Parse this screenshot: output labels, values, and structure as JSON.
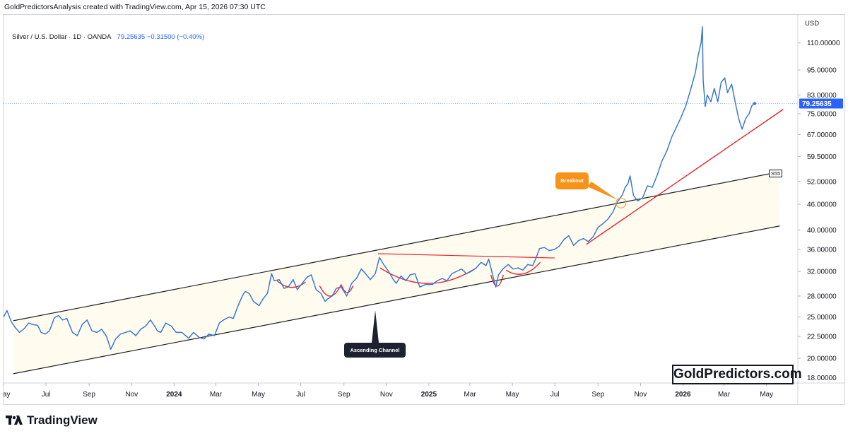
{
  "header": {
    "text": "GoldPredictorsAnalysis created with TradingView.com, Apr 15, 2026 07:30 UTC"
  },
  "legend": {
    "symbol": "Silver / U.S. Dollar",
    "interval": "1D",
    "source": "OANDA",
    "last": "79.25635",
    "change": "−0.31500",
    "change_pct": "(−0.40%)"
  },
  "footer": {
    "brand": "TradingView",
    "logo_icon": "tradingview-logo-icon"
  },
  "watermark": {
    "text": "GoldPredictors.com"
  },
  "annotations": {
    "breakout": "Breakout",
    "ascending_channel": "Ascending Channel",
    "channel_tag": "S55"
  },
  "colors": {
    "price_line": "#3a78cf",
    "trend_red": "#e8222d",
    "channel_line": "#1e1e1e",
    "channel_fill": "#fffcef",
    "breakout_bg": "#f7931a",
    "label_dark": "#1e2230",
    "price_tag": "#2962ff"
  },
  "chart_data": {
    "type": "line",
    "title": "Silver / U.S. Dollar · 1D · OANDA",
    "currency": "USD",
    "y_scale": "log",
    "ylim": [
      17.5,
      128
    ],
    "y_ticks": [
      18,
      20,
      22.5,
      25,
      28,
      32,
      36,
      40,
      46,
      52,
      59.5,
      67,
      75,
      83,
      95,
      110
    ],
    "y_tick_labels": [
      "18.00000",
      "20.00000",
      "22.50000",
      "25.00000",
      "28.00000",
      "32.00000",
      "36.00000",
      "40.00000",
      "46.00000",
      "52.00000",
      "59.50000",
      "67.00000",
      "75.00000",
      "83.00000",
      "95.00000",
      "110.00000"
    ],
    "x_ticks": [
      {
        "label": "May",
        "date": "2023-05-01",
        "bold": false
      },
      {
        "label": "Jul",
        "date": "2023-07-01",
        "bold": false
      },
      {
        "label": "Sep",
        "date": "2023-09-01",
        "bold": false
      },
      {
        "label": "Nov",
        "date": "2023-11-01",
        "bold": false
      },
      {
        "label": "2024",
        "date": "2024-01-01",
        "bold": true
      },
      {
        "label": "Mar",
        "date": "2024-03-01",
        "bold": false
      },
      {
        "label": "May",
        "date": "2024-05-01",
        "bold": false
      },
      {
        "label": "Jul",
        "date": "2024-07-01",
        "bold": false
      },
      {
        "label": "Sep",
        "date": "2024-09-01",
        "bold": false
      },
      {
        "label": "Nov",
        "date": "2024-11-01",
        "bold": false
      },
      {
        "label": "2025",
        "date": "2025-01-01",
        "bold": true
      },
      {
        "label": "Mar",
        "date": "2025-03-01",
        "bold": false
      },
      {
        "label": "May",
        "date": "2025-05-01",
        "bold": false
      },
      {
        "label": "Jul",
        "date": "2025-07-01",
        "bold": false
      },
      {
        "label": "Sep",
        "date": "2025-09-01",
        "bold": false
      },
      {
        "label": "Nov",
        "date": "2025-11-01",
        "bold": false
      },
      {
        "label": "2026",
        "date": "2026-01-01",
        "bold": true
      },
      {
        "label": "Mar",
        "date": "2026-03-01",
        "bold": false
      },
      {
        "label": "May",
        "date": "2026-05-01",
        "bold": false
      }
    ],
    "xlim": [
      "2023-05-01",
      "2026-06-15"
    ],
    "last_price": 79.25635,
    "series": [
      {
        "name": "Silver / U.S. Dollar",
        "points": [
          [
            "2023-05-01",
            25.0
          ],
          [
            "2023-05-06",
            25.9
          ],
          [
            "2023-05-12",
            24.4
          ],
          [
            "2023-05-18",
            23.6
          ],
          [
            "2023-05-24",
            23.0
          ],
          [
            "2023-05-31",
            23.5
          ],
          [
            "2023-06-06",
            24.2
          ],
          [
            "2023-06-12",
            24.0
          ],
          [
            "2023-06-19",
            23.9
          ],
          [
            "2023-06-24",
            23.0
          ],
          [
            "2023-06-30",
            22.8
          ],
          [
            "2023-07-06",
            23.2
          ],
          [
            "2023-07-13",
            24.9
          ],
          [
            "2023-07-19",
            25.2
          ],
          [
            "2023-07-25",
            24.6
          ],
          [
            "2023-07-31",
            24.8
          ],
          [
            "2023-08-08",
            23.0
          ],
          [
            "2023-08-15",
            22.6
          ],
          [
            "2023-08-22",
            24.0
          ],
          [
            "2023-08-29",
            24.6
          ],
          [
            "2023-09-05",
            23.2
          ],
          [
            "2023-09-12",
            23.0
          ],
          [
            "2023-09-19",
            23.4
          ],
          [
            "2023-09-26",
            22.5
          ],
          [
            "2023-10-02",
            21.0
          ],
          [
            "2023-10-09",
            22.2
          ],
          [
            "2023-10-16",
            22.8
          ],
          [
            "2023-10-23",
            23.0
          ],
          [
            "2023-10-30",
            23.2
          ],
          [
            "2023-11-07",
            22.6
          ],
          [
            "2023-11-14",
            23.4
          ],
          [
            "2023-11-21",
            23.8
          ],
          [
            "2023-11-28",
            24.6
          ],
          [
            "2023-12-04",
            23.8
          ],
          [
            "2023-12-08",
            23.2
          ],
          [
            "2023-12-13",
            23.0
          ],
          [
            "2023-12-20",
            24.2
          ],
          [
            "2023-12-28",
            23.8
          ],
          [
            "2024-01-04",
            23.0
          ],
          [
            "2024-01-12",
            23.0
          ],
          [
            "2024-01-22",
            22.3
          ],
          [
            "2024-01-29",
            23.0
          ],
          [
            "2024-02-06",
            22.4
          ],
          [
            "2024-02-13",
            22.2
          ],
          [
            "2024-02-20",
            22.8
          ],
          [
            "2024-02-28",
            22.6
          ],
          [
            "2024-03-06",
            24.2
          ],
          [
            "2024-03-12",
            24.6
          ],
          [
            "2024-03-20",
            25.0
          ],
          [
            "2024-03-26",
            24.8
          ],
          [
            "2024-04-02",
            26.6
          ],
          [
            "2024-04-08",
            28.0
          ],
          [
            "2024-04-12",
            28.7
          ],
          [
            "2024-04-18",
            28.4
          ],
          [
            "2024-04-24",
            27.2
          ],
          [
            "2024-05-02",
            26.6
          ],
          [
            "2024-05-08",
            27.6
          ],
          [
            "2024-05-14",
            28.4
          ],
          [
            "2024-05-20",
            31.6
          ],
          [
            "2024-05-24",
            30.4
          ],
          [
            "2024-05-31",
            30.6
          ],
          [
            "2024-06-07",
            29.2
          ],
          [
            "2024-06-13",
            29.4
          ],
          [
            "2024-06-20",
            30.6
          ],
          [
            "2024-06-26",
            29.0
          ],
          [
            "2024-07-03",
            30.0
          ],
          [
            "2024-07-10",
            31.0
          ],
          [
            "2024-07-16",
            31.4
          ],
          [
            "2024-07-23",
            29.0
          ],
          [
            "2024-07-30",
            28.4
          ],
          [
            "2024-08-05",
            27.2
          ],
          [
            "2024-08-09",
            27.6
          ],
          [
            "2024-08-15",
            28.0
          ],
          [
            "2024-08-21",
            29.2
          ],
          [
            "2024-08-28",
            29.4
          ],
          [
            "2024-09-05",
            28.0
          ],
          [
            "2024-09-12",
            30.0
          ],
          [
            "2024-09-19",
            30.8
          ],
          [
            "2024-09-26",
            32.4
          ],
          [
            "2024-10-02",
            31.6
          ],
          [
            "2024-10-09",
            30.6
          ],
          [
            "2024-10-16",
            31.6
          ],
          [
            "2024-10-22",
            34.5
          ],
          [
            "2024-10-28",
            33.2
          ],
          [
            "2024-11-04",
            32.0
          ],
          [
            "2024-11-11",
            30.6
          ],
          [
            "2024-11-15",
            30.0
          ],
          [
            "2024-11-22",
            31.2
          ],
          [
            "2024-11-29",
            30.4
          ],
          [
            "2024-12-05",
            31.4
          ],
          [
            "2024-12-12",
            31.6
          ],
          [
            "2024-12-19",
            29.4
          ],
          [
            "2024-12-27",
            29.8
          ],
          [
            "2025-01-06",
            29.8
          ],
          [
            "2025-01-13",
            30.4
          ],
          [
            "2025-01-20",
            30.8
          ],
          [
            "2025-01-27",
            30.4
          ],
          [
            "2025-02-03",
            31.6
          ],
          [
            "2025-02-10",
            32.0
          ],
          [
            "2025-02-17",
            32.4
          ],
          [
            "2025-02-24",
            31.6
          ],
          [
            "2025-03-03",
            32.0
          ],
          [
            "2025-03-10",
            32.6
          ],
          [
            "2025-03-17",
            33.6
          ],
          [
            "2025-03-24",
            33.0
          ],
          [
            "2025-03-28",
            34.2
          ],
          [
            "2025-04-03",
            31.2
          ],
          [
            "2025-04-07",
            29.4
          ],
          [
            "2025-04-11",
            31.4
          ],
          [
            "2025-04-18",
            32.5
          ],
          [
            "2025-04-25",
            33.2
          ],
          [
            "2025-05-02",
            32.4
          ],
          [
            "2025-05-09",
            32.6
          ],
          [
            "2025-05-16",
            32.2
          ],
          [
            "2025-05-23",
            33.2
          ],
          [
            "2025-05-30",
            33.0
          ],
          [
            "2025-06-04",
            34.4
          ],
          [
            "2025-06-09",
            36.2
          ],
          [
            "2025-06-16",
            36.4
          ],
          [
            "2025-06-23",
            35.8
          ],
          [
            "2025-06-30",
            36.0
          ],
          [
            "2025-07-07",
            36.6
          ],
          [
            "2025-07-14",
            38.0
          ],
          [
            "2025-07-21",
            38.8
          ],
          [
            "2025-07-28",
            36.8
          ],
          [
            "2025-08-04",
            37.8
          ],
          [
            "2025-08-11",
            38.2
          ],
          [
            "2025-08-18",
            37.6
          ],
          [
            "2025-08-25",
            38.6
          ],
          [
            "2025-09-01",
            40.6
          ],
          [
            "2025-09-08",
            41.4
          ],
          [
            "2025-09-15",
            42.4
          ],
          [
            "2025-09-22",
            44.0
          ],
          [
            "2025-09-29",
            46.6
          ],
          [
            "2025-10-06",
            48.4
          ],
          [
            "2025-10-10",
            50.4
          ],
          [
            "2025-10-14",
            51.4
          ],
          [
            "2025-10-17",
            53.6
          ],
          [
            "2025-10-22",
            48.2
          ],
          [
            "2025-10-28",
            46.8
          ],
          [
            "2025-11-04",
            47.6
          ],
          [
            "2025-11-11",
            50.8
          ],
          [
            "2025-11-18",
            50.4
          ],
          [
            "2025-11-25",
            53.8
          ],
          [
            "2025-12-02",
            58.2
          ],
          [
            "2025-12-09",
            61.4
          ],
          [
            "2025-12-16",
            66.2
          ],
          [
            "2025-12-22",
            69.4
          ],
          [
            "2025-12-29",
            73.4
          ],
          [
            "2026-01-05",
            78.2
          ],
          [
            "2026-01-12",
            85.4
          ],
          [
            "2026-01-19",
            94.0
          ],
          [
            "2026-01-23",
            103.0
          ],
          [
            "2026-01-27",
            110.0
          ],
          [
            "2026-01-29",
            120.0
          ],
          [
            "2026-01-30",
            90.0
          ],
          [
            "2026-02-02",
            78.0
          ],
          [
            "2026-02-05",
            83.0
          ],
          [
            "2026-02-10",
            80.0
          ],
          [
            "2026-02-15",
            86.0
          ],
          [
            "2026-02-20",
            80.0
          ],
          [
            "2026-02-25",
            89.0
          ],
          [
            "2026-03-02",
            91.0
          ],
          [
            "2026-03-06",
            84.0
          ],
          [
            "2026-03-12",
            88.0
          ],
          [
            "2026-03-17",
            80.0
          ],
          [
            "2026-03-22",
            73.0
          ],
          [
            "2026-03-27",
            69.0
          ],
          [
            "2026-04-01",
            73.0
          ],
          [
            "2026-04-06",
            75.0
          ],
          [
            "2026-04-10",
            78.4
          ],
          [
            "2026-04-14",
            79.26
          ]
        ]
      }
    ],
    "drawings": {
      "channel_upper": {
        "from": [
          "2023-05-15",
          24.5
        ],
        "to": [
          "2026-05-20",
          54.8
        ]
      },
      "channel_lower": {
        "from": [
          "2023-05-15",
          18.4
        ],
        "to": [
          "2026-05-20",
          40.9
        ]
      },
      "resistance": {
        "from": [
          "2024-10-20",
          35.2
        ],
        "to": [
          "2025-07-01",
          34.4
        ]
      },
      "support_trend": {
        "from": [
          "2025-08-15",
          37.0
        ],
        "to": [
          "2026-05-25",
          76.8
        ]
      },
      "breakout_point": [
        "2025-10-04",
        46.3
      ],
      "arcs": [
        {
          "from": [
            "2024-05-28",
            30.4
          ],
          "to": [
            "2024-07-08",
            30.2
          ],
          "depth": 8
        },
        {
          "from": [
            "2024-07-28",
            29.6
          ],
          "to": [
            "2024-08-28",
            29.8
          ],
          "depth": 15
        },
        {
          "from": [
            "2024-08-28",
            29.8
          ],
          "to": [
            "2024-09-14",
            29.6
          ],
          "depth": 10
        },
        {
          "from": [
            "2024-10-23",
            32.6
          ],
          "to": [
            "2025-03-10",
            32.6
          ],
          "depth": 22
        },
        {
          "from": [
            "2025-03-31",
            31.4
          ],
          "to": [
            "2025-04-18",
            31.4
          ],
          "depth": 16
        },
        {
          "from": [
            "2025-04-22",
            32.2
          ],
          "to": [
            "2025-06-10",
            33.6
          ],
          "depth": 8
        }
      ]
    }
  }
}
